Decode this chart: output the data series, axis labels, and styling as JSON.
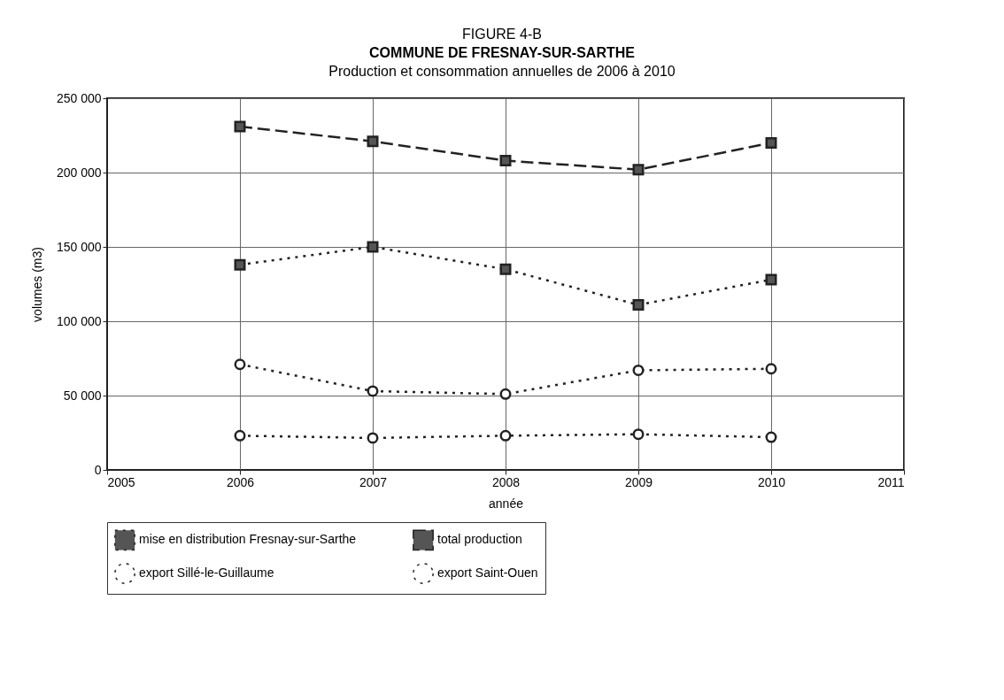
{
  "chart_data": {
    "type": "line",
    "title": "COMMUNE DE FRESNAY-SUR-SARTHE",
    "subtitle": "Production et consommation annuelles de 2006 à 2010",
    "annotations": [
      "FIGURE 4-B"
    ],
    "xlabel": "année",
    "ylabel": "volumes (m3)",
    "x": [
      2006,
      2007,
      2008,
      2009,
      2010
    ],
    "series": [
      {
        "name": "mise en distribution Fresnay-sur-Sarthe",
        "color": "#222222",
        "marker": "square",
        "line_style": "dotted",
        "values": [
          138000,
          150000,
          135000,
          111000,
          128000
        ]
      },
      {
        "name": "total production",
        "color": "#222222",
        "marker": "square",
        "line_style": "dashed",
        "values": [
          231000,
          221000,
          208000,
          202000,
          220000
        ]
      },
      {
        "name": "export Sillé-le-Guillaume",
        "color": "#222222",
        "marker": "circle",
        "line_style": "dotted",
        "values": [
          23000,
          21500,
          23000,
          24000,
          22000
        ]
      },
      {
        "name": "export Saint-Ouen",
        "color": "#222222",
        "marker": "circle",
        "line_style": "dotted",
        "values": [
          71000,
          53000,
          51000,
          67000,
          68000
        ]
      }
    ],
    "xlim": [
      2005,
      2011
    ],
    "xticks": [
      2005,
      2006,
      2007,
      2008,
      2009,
      2010,
      2011
    ],
    "ylim": [
      0,
      250000
    ],
    "yticks": [
      0,
      {
        "value": 50000,
        "label": "50 000"
      },
      {
        "value": 100000,
        "label": "100 000"
      },
      {
        "value": 150000,
        "label": "150 000"
      },
      {
        "value": 200000,
        "label": "200 000"
      },
      {
        "value": 250000,
        "label": "250 000"
      }
    ],
    "grid": true,
    "legend": "bottom"
  }
}
